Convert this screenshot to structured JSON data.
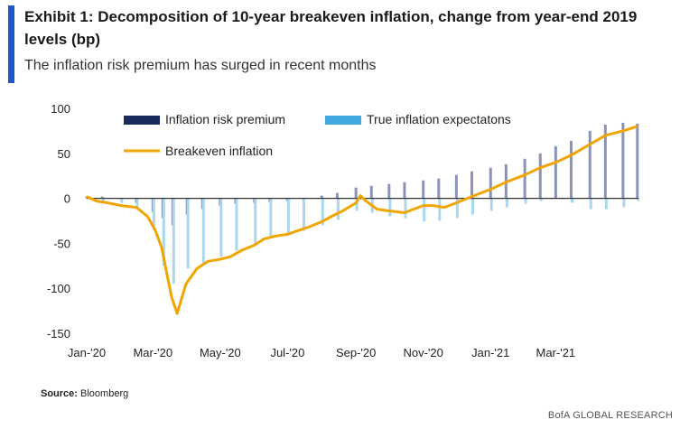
{
  "header": {
    "title": "Exhibit 1: Decomposition of 10-year breakeven inflation, change from year-end 2019 levels (bp)",
    "subtitle": "The inflation risk premium has surged in recent months"
  },
  "source": {
    "label": "Source:",
    "text": "Bloomberg"
  },
  "footer": {
    "brand": "BofA GLOBAL RESEARCH"
  },
  "colors": {
    "accent": "#1f57c8",
    "risk_premium": "#1b2a5c",
    "expectations": "#3fa9e0",
    "breakeven": "#f0a500"
  },
  "chart_data": {
    "type": "bar",
    "title": "",
    "xlabel": "",
    "ylabel": "",
    "ylim": [
      -150,
      100
    ],
    "yticks": [
      100,
      50,
      0,
      -50,
      -100,
      -150
    ],
    "xticks": [
      "Jan-'20",
      "Mar-'20",
      "May-'20",
      "Jul-'20",
      "Sep-'20",
      "Nov-'20",
      "Jan-'21",
      "Mar-'21"
    ],
    "x_range": [
      "2020-01-01",
      "2021-05-15"
    ],
    "legend_position": "top",
    "grid": false,
    "series": [
      {
        "name": "Inflation  risk premium",
        "type": "bar",
        "x": [
          "2020-01-01",
          "2020-01-15",
          "2020-02-01",
          "2020-02-15",
          "2020-03-01",
          "2020-03-10",
          "2020-03-19",
          "2020-04-01",
          "2020-04-15",
          "2020-05-01",
          "2020-05-15",
          "2020-06-01",
          "2020-06-15",
          "2020-07-01",
          "2020-07-15",
          "2020-08-01",
          "2020-08-15",
          "2020-09-01",
          "2020-09-15",
          "2020-10-01",
          "2020-10-15",
          "2020-11-01",
          "2020-11-15",
          "2020-12-01",
          "2020-12-15",
          "2021-01-01",
          "2021-01-15",
          "2021-02-01",
          "2021-02-15",
          "2021-03-01",
          "2021-03-15",
          "2021-04-01",
          "2021-04-15",
          "2021-05-01",
          "2021-05-14"
        ],
        "values": [
          2,
          2,
          -1,
          -5,
          -15,
          -22,
          -30,
          -18,
          -12,
          -8,
          -6,
          -5,
          -4,
          -3,
          -1,
          3,
          6,
          12,
          14,
          16,
          18,
          20,
          22,
          26,
          30,
          34,
          38,
          44,
          50,
          58,
          64,
          75,
          82,
          84,
          83
        ]
      },
      {
        "name": "True inflation  expectatons",
        "type": "bar",
        "x": [
          "2020-01-01",
          "2020-01-15",
          "2020-02-01",
          "2020-02-15",
          "2020-03-01",
          "2020-03-10",
          "2020-03-19",
          "2020-04-01",
          "2020-04-15",
          "2020-05-01",
          "2020-05-15",
          "2020-06-01",
          "2020-06-15",
          "2020-07-01",
          "2020-07-15",
          "2020-08-01",
          "2020-08-15",
          "2020-09-01",
          "2020-09-15",
          "2020-10-01",
          "2020-10-15",
          "2020-11-01",
          "2020-11-15",
          "2020-12-01",
          "2020-12-15",
          "2021-01-01",
          "2021-01-15",
          "2021-02-01",
          "2021-02-15",
          "2021-03-01",
          "2021-03-15",
          "2021-04-01",
          "2021-04-15",
          "2021-05-01",
          "2021-05-14"
        ],
        "values": [
          0,
          -3,
          -5,
          -12,
          -35,
          -75,
          -95,
          -78,
          -72,
          -65,
          -58,
          -50,
          -44,
          -40,
          -36,
          -30,
          -24,
          -14,
          -16,
          -20,
          -22,
          -26,
          -25,
          -22,
          -18,
          -14,
          -10,
          -6,
          -3,
          0,
          -5,
          -12,
          -12,
          -10,
          -3
        ]
      },
      {
        "name": "Breakeven inflation",
        "type": "line",
        "x": [
          "2020-01-01",
          "2020-01-10",
          "2020-01-20",
          "2020-02-01",
          "2020-02-15",
          "2020-02-25",
          "2020-03-03",
          "2020-03-09",
          "2020-03-13",
          "2020-03-18",
          "2020-03-23",
          "2020-03-31",
          "2020-04-10",
          "2020-04-20",
          "2020-04-30",
          "2020-05-10",
          "2020-05-20",
          "2020-06-01",
          "2020-06-10",
          "2020-06-20",
          "2020-07-01",
          "2020-07-10",
          "2020-07-20",
          "2020-08-01",
          "2020-08-10",
          "2020-08-20",
          "2020-09-01",
          "2020-09-05",
          "2020-09-10",
          "2020-09-20",
          "2020-10-01",
          "2020-10-15",
          "2020-11-01",
          "2020-11-10",
          "2020-11-20",
          "2020-12-01",
          "2020-12-15",
          "2021-01-01",
          "2021-01-15",
          "2021-02-01",
          "2021-02-15",
          "2021-03-01",
          "2021-03-15",
          "2021-04-01",
          "2021-04-15",
          "2021-05-01",
          "2021-05-14"
        ],
        "values": [
          2,
          -3,
          -5,
          -8,
          -10,
          -20,
          -35,
          -55,
          -80,
          -110,
          -128,
          -95,
          -78,
          -70,
          -68,
          -65,
          -58,
          -52,
          -45,
          -42,
          -40,
          -36,
          -32,
          -26,
          -20,
          -14,
          -5,
          3,
          -3,
          -12,
          -14,
          -16,
          -8,
          -8,
          -10,
          -5,
          2,
          10,
          18,
          26,
          34,
          40,
          48,
          60,
          70,
          75,
          80
        ]
      }
    ]
  }
}
